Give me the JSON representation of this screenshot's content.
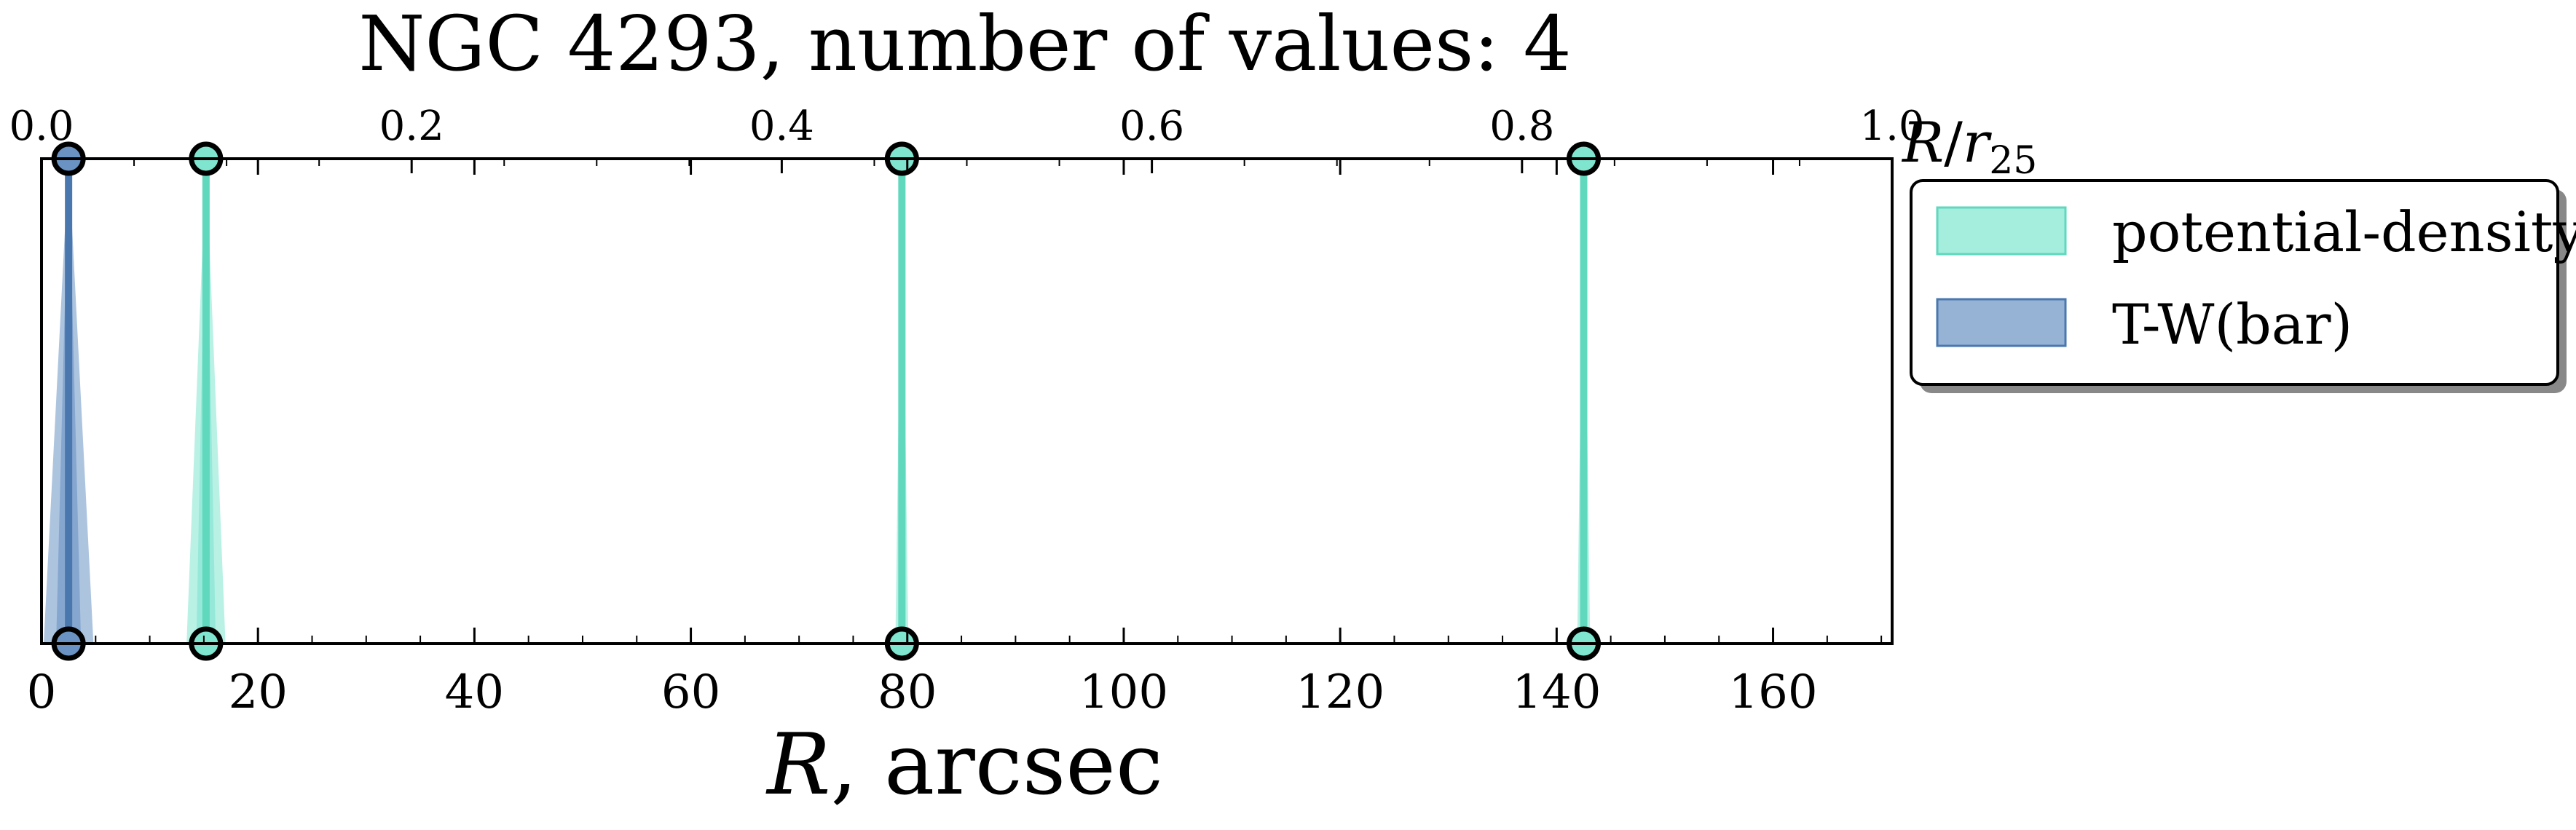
{
  "chart_data": {
    "type": "area",
    "title": "NGC 4293, number of values: 4",
    "xlabel": "R, arcsec",
    "xlabel_italic": "R",
    "xlabel_rest": ", arcsec",
    "top_axis_label": "R/r25",
    "top_axis_label_parts": {
      "R": "R",
      "slash": "/",
      "r": "r",
      "sub": "25"
    },
    "xlim": [
      0,
      171
    ],
    "top_xlim": [
      0.0,
      1.0
    ],
    "xticks": [
      0,
      20,
      40,
      60,
      80,
      100,
      120,
      140,
      160
    ],
    "xtick_labels": [
      "0",
      "20",
      "40",
      "60",
      "80",
      "100",
      "120",
      "140",
      "160"
    ],
    "top_xticks": [
      0.0,
      0.2,
      0.4,
      0.6,
      0.8,
      1.0
    ],
    "top_xtick_labels": [
      "0.0",
      "0.2",
      "0.4",
      "0.6",
      "0.8",
      "1.0"
    ],
    "grid": false,
    "legend_position": "outside-right-top",
    "series": [
      {
        "name": "potential-density",
        "color": "#7fe5cf",
        "edge_color": "#5fd8bd",
        "values": [
          {
            "r": 15.2,
            "err": 1.8
          },
          {
            "r": 79.5,
            "err": 0.6
          },
          {
            "r": 142.5,
            "err": 0.6
          }
        ]
      },
      {
        "name": "T-W(bar)",
        "color": "#6a93c4",
        "edge_color": "#4a77ae",
        "values": [
          {
            "r": 2.5,
            "err": 2.3
          }
        ]
      }
    ],
    "marker_fill": "#4fa7a4",
    "marker_edge": "#000000"
  }
}
